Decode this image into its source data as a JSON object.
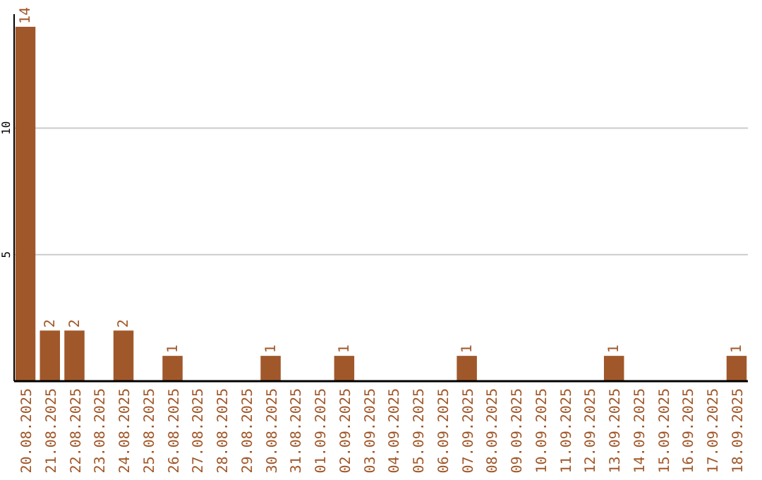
{
  "chart_data": {
    "type": "bar",
    "categories": [
      "20.08.2025",
      "21.08.2025",
      "22.08.2025",
      "23.08.2025",
      "24.08.2025",
      "25.08.2025",
      "26.08.2025",
      "27.08.2025",
      "28.08.2025",
      "29.08.2025",
      "30.08.2025",
      "31.08.2025",
      "01.09.2025",
      "02.09.2025",
      "03.09.2025",
      "04.09.2025",
      "05.09.2025",
      "06.09.2025",
      "07.09.2025",
      "08.09.2025",
      "09.09.2025",
      "10.09.2025",
      "11.09.2025",
      "12.09.2025",
      "13.09.2025",
      "14.09.2025",
      "15.09.2025",
      "16.09.2025",
      "17.09.2025",
      "18.09.2025"
    ],
    "values": [
      14,
      2,
      2,
      0,
      2,
      0,
      1,
      0,
      0,
      0,
      1,
      0,
      0,
      1,
      0,
      0,
      0,
      0,
      1,
      0,
      0,
      0,
      0,
      0,
      1,
      0,
      0,
      0,
      0,
      1
    ],
    "value_labels": [
      "14",
      "2",
      "2",
      null,
      "2",
      null,
      "1",
      null,
      null,
      null,
      "1",
      null,
      null,
      "1",
      null,
      null,
      null,
      null,
      "1",
      null,
      null,
      null,
      null,
      null,
      "1",
      null,
      null,
      null,
      null,
      "1"
    ],
    "color": "#a0582a",
    "ylim": [
      0,
      14.5
    ],
    "yticks": [
      5,
      10
    ],
    "grid": "y"
  }
}
